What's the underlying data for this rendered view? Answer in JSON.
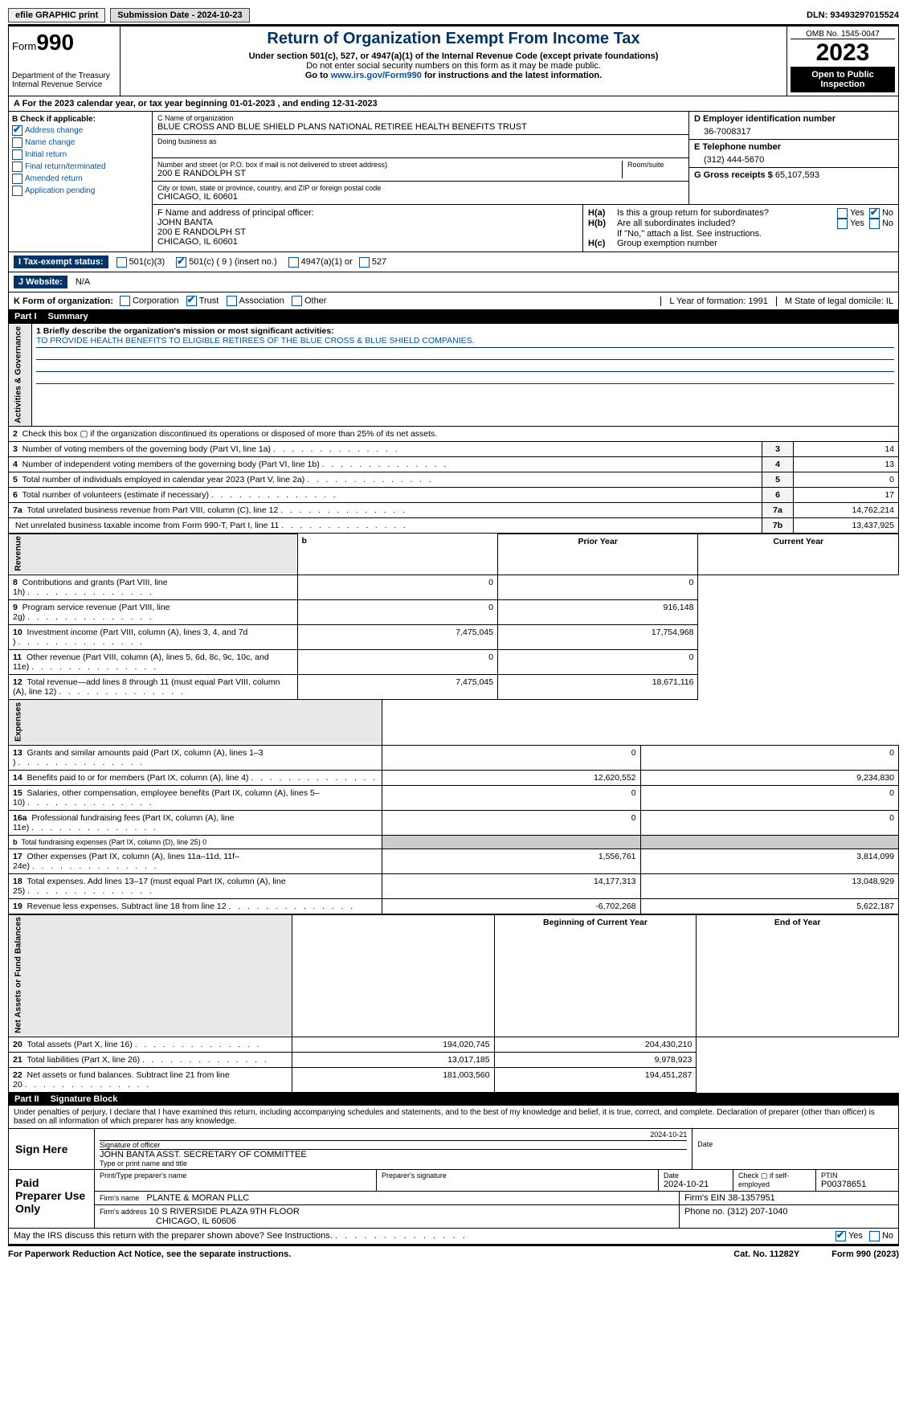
{
  "topbar": {
    "efile": "efile GRAPHIC print",
    "submission_label": "Submission Date - 2024-10-23",
    "dln_label": "DLN: 93493297015524"
  },
  "header": {
    "form_word": "Form",
    "form_no": "990",
    "title": "Return of Organization Exempt From Income Tax",
    "sub1": "Under section 501(c), 527, or 4947(a)(1) of the Internal Revenue Code (except private foundations)",
    "sub2": "Do not enter social security numbers on this form as it may be made public.",
    "sub3_pre": "Go to ",
    "sub3_link": "www.irs.gov/Form990",
    "sub3_post": " for instructions and the latest information.",
    "dept": "Department of the Treasury",
    "irs": "Internal Revenue Service",
    "omb": "OMB No. 1545-0047",
    "year": "2023",
    "open": "Open to Public Inspection"
  },
  "a_line": {
    "pre": "A For the 2023 calendar year, or tax year beginning ",
    "begin": "01-01-2023",
    "mid": " , and ending ",
    "end": "12-31-2023"
  },
  "boxB": {
    "label": "B Check if applicable:",
    "items": [
      "Address change",
      "Name change",
      "Initial return",
      "Final return/terminated",
      "Amended return",
      "Application pending"
    ],
    "checked": [
      true,
      false,
      false,
      false,
      false,
      false
    ]
  },
  "boxC": {
    "name_label": "C Name of organization",
    "name": "BLUE CROSS AND BLUE SHIELD PLANS NATIONAL RETIREE HEALTH BENEFITS TRUST",
    "dba_label": "Doing business as",
    "dba": "",
    "street_label": "Number and street (or P.O. box if mail is not delivered to street address)",
    "room_label": "Room/suite",
    "street": "200 E RANDOLPH ST",
    "city_label": "City or town, state or province, country, and ZIP or foreign postal code",
    "city": "CHICAGO, IL  60601"
  },
  "boxD": {
    "label": "D Employer identification number",
    "val": "36-7008317"
  },
  "boxE": {
    "label": "E Telephone number",
    "val": "(312) 444-5670"
  },
  "boxG": {
    "label": "G Gross receipts $",
    "val": "65,107,593"
  },
  "boxF": {
    "label": "F  Name and address of principal officer:",
    "name": "JOHN BANTA",
    "street": "200 E RANDOLPH ST",
    "city": "CHICAGO, IL  60601"
  },
  "boxH": {
    "a_label": "H(a)",
    "a_text": "Is this a group return for subordinates?",
    "a_yes": "Yes",
    "a_no": "No",
    "a_checked": "no",
    "b_label": "H(b)",
    "b_text": "Are all subordinates included?",
    "b_note": "If \"No,\" attach a list. See instructions.",
    "c_label": "H(c)",
    "c_text": "Group exemption number"
  },
  "taxstatus": {
    "label": "I Tax-exempt status:",
    "c3": "501(c)(3)",
    "c": "501(c) ( 9 ) (insert no.)",
    "c_checked": true,
    "a4947": "4947(a)(1) or",
    "s527": "527"
  },
  "website": {
    "label": "J Website:",
    "val": "N/A"
  },
  "korg": {
    "label": "K Form of organization:",
    "opts": [
      "Corporation",
      "Trust",
      "Association",
      "Other"
    ],
    "checked_idx": 1,
    "L": "L Year of formation: 1991",
    "M": "M State of legal domicile: IL"
  },
  "part1": {
    "no": "Part I",
    "title": "Summary"
  },
  "mission": {
    "label": "1  Briefly describe the organization's mission or most significant activities:",
    "text": "TO PROVIDE HEALTH BENEFITS TO ELIGIBLE RETIREES OF THE BLUE CROSS & BLUE SHIELD COMPANIES."
  },
  "gov_rows": [
    {
      "n": "2",
      "t": "Check this box ▢ if the organization discontinued its operations or disposed of more than 25% of its net assets."
    },
    {
      "n": "3",
      "t": "Number of voting members of the governing body (Part VI, line 1a)",
      "box": "3",
      "v": "14"
    },
    {
      "n": "4",
      "t": "Number of independent voting members of the governing body (Part VI, line 1b)",
      "box": "4",
      "v": "13"
    },
    {
      "n": "5",
      "t": "Total number of individuals employed in calendar year 2023 (Part V, line 2a)",
      "box": "5",
      "v": "0"
    },
    {
      "n": "6",
      "t": "Total number of volunteers (estimate if necessary)",
      "box": "6",
      "v": "17"
    },
    {
      "n": "7a",
      "t": "Total unrelated business revenue from Part VIII, column (C), line 12",
      "box": "7a",
      "v": "14,762,214"
    },
    {
      "n": "",
      "t": "Net unrelated business taxable income from Form 990-T, Part I, line 11",
      "box": "7b",
      "v": "13,437,925"
    }
  ],
  "rev_header": {
    "b": "b",
    "py": "Prior Year",
    "cy": "Current Year"
  },
  "rev_rows": [
    {
      "n": "8",
      "t": "Contributions and grants (Part VIII, line 1h)",
      "py": "0",
      "cy": "0"
    },
    {
      "n": "9",
      "t": "Program service revenue (Part VIII, line 2g)",
      "py": "0",
      "cy": "916,148"
    },
    {
      "n": "10",
      "t": "Investment income (Part VIII, column (A), lines 3, 4, and 7d )",
      "py": "7,475,045",
      "cy": "17,754,968"
    },
    {
      "n": "11",
      "t": "Other revenue (Part VIII, column (A), lines 5, 6d, 8c, 9c, 10c, and 11e)",
      "py": "0",
      "cy": "0"
    },
    {
      "n": "12",
      "t": "Total revenue—add lines 8 through 11 (must equal Part VIII, column (A), line 12)",
      "py": "7,475,045",
      "cy": "18,671,116"
    }
  ],
  "exp_rows": [
    {
      "n": "13",
      "t": "Grants and similar amounts paid (Part IX, column (A), lines 1–3 )",
      "py": "0",
      "cy": "0"
    },
    {
      "n": "14",
      "t": "Benefits paid to or for members (Part IX, column (A), line 4)",
      "py": "12,620,552",
      "cy": "9,234,830"
    },
    {
      "n": "15",
      "t": "Salaries, other compensation, employee benefits (Part IX, column (A), lines 5–10)",
      "py": "0",
      "cy": "0"
    },
    {
      "n": "16a",
      "t": "Professional fundraising fees (Part IX, column (A), line 11e)",
      "py": "0",
      "cy": "0"
    },
    {
      "n": "b",
      "t": "Total fundraising expenses (Part IX, column (D), line 25) 0",
      "py": "",
      "cy": "",
      "shade": true,
      "small": true
    },
    {
      "n": "17",
      "t": "Other expenses (Part IX, column (A), lines 11a–11d, 11f–24e)",
      "py": "1,556,761",
      "cy": "3,814,099"
    },
    {
      "n": "18",
      "t": "Total expenses. Add lines 13–17 (must equal Part IX, column (A), line 25)",
      "py": "14,177,313",
      "cy": "13,048,929"
    },
    {
      "n": "19",
      "t": "Revenue less expenses. Subtract line 18 from line 12",
      "py": "-6,702,268",
      "cy": "5,622,187"
    }
  ],
  "na_header": {
    "by": "Beginning of Current Year",
    "ey": "End of Year"
  },
  "na_rows": [
    {
      "n": "20",
      "t": "Total assets (Part X, line 16)",
      "py": "194,020,745",
      "cy": "204,430,210"
    },
    {
      "n": "21",
      "t": "Total liabilities (Part X, line 26)",
      "py": "13,017,185",
      "cy": "9,978,923"
    },
    {
      "n": "22",
      "t": "Net assets or fund balances. Subtract line 21 from line 20",
      "py": "181,003,560",
      "cy": "194,451,287"
    }
  ],
  "part2": {
    "no": "Part II",
    "title": "Signature Block"
  },
  "perjury": "Under penalties of perjury, I declare that I have examined this return, including accompanying schedules and statements, and to the best of my knowledge and belief, it is true, correct, and complete. Declaration of preparer (other than officer) is based on all information of which preparer has any knowledge.",
  "sign": {
    "here": "Sign Here",
    "officer_sig": "Signature of officer",
    "officer_name": "JOHN BANTA ASST. SECRETARY OF COMMITTEE",
    "type_label": "Type or print name and title",
    "date_label": "Date",
    "date": "2024-10-21"
  },
  "paid": {
    "label": "Paid Preparer Use Only",
    "name_label": "Print/Type preparer's name",
    "sig_label": "Preparer's signature",
    "date": "2024-10-21",
    "check_label": "Check ▢ if self-employed",
    "ptin_label": "PTIN",
    "ptin": "P00378651",
    "firm_label": "Firm's name",
    "firm": "PLANTE & MORAN PLLC",
    "ein_label": "Firm's EIN 38-1357951",
    "addr_label": "Firm's address",
    "addr1": "10 S RIVERSIDE PLAZA 9TH FLOOR",
    "addr2": "CHICAGO, IL  60606",
    "phone_label": "Phone no. (312) 207-1040"
  },
  "discuss": "May the IRS discuss this return with the preparer shown above? See Instructions.",
  "footer": {
    "left": "For Paperwork Reduction Act Notice, see the separate instructions.",
    "mid": "Cat. No. 11282Y",
    "right": "Form 990 (2023)"
  },
  "sections": {
    "gov": "Activities & Governance",
    "rev": "Revenue",
    "exp": "Expenses",
    "na": "Net Assets or Fund Balances"
  }
}
